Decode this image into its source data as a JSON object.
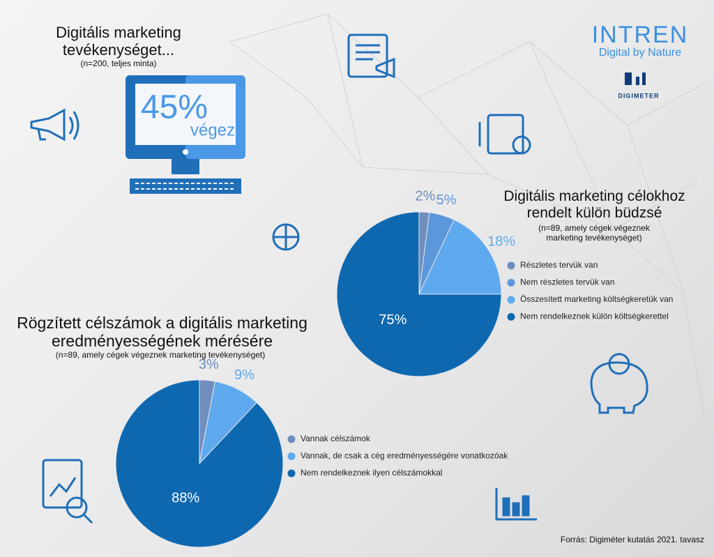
{
  "header": {
    "title": "Digitális marketing tevékenységet...",
    "subtitle": "(n=200, teljes minta)"
  },
  "monitor": {
    "percent": "45%",
    "caption": "végez"
  },
  "brand": {
    "name": "INTREN",
    "tagline": "Digital by Nature",
    "product": "DIGIMETER"
  },
  "source": "Forrás: Digiméter kutatás 2021. tavasz",
  "chart_data": [
    {
      "type": "pie",
      "title": "Digitális marketing célokhoz rendelt külön büdzsé",
      "subtitle": "(n=89, amely cégek végeznek marketing tevékenységet)",
      "categories": [
        "Részletes tervük van",
        "Nem részletes tervük van",
        "Összesített marketing költségkeretük van",
        "Nem rendelkeznek külön költségkerettel"
      ],
      "values": [
        2,
        5,
        18,
        75
      ],
      "value_labels": [
        "2%",
        "5%",
        "18%",
        "75%"
      ],
      "colors": [
        "#6f8dbd",
        "#5b97da",
        "#5fa9ef",
        "#0e68b0"
      ]
    },
    {
      "type": "pie",
      "title": "Rögzített célszámok a digitális marketing eredményességének mérésére",
      "subtitle": "(n=89, amely cégek végeznek marketing tevékenységet)",
      "categories": [
        "Vannak célszámok",
        "Vannak, de csak a cég eredményességére vonatkozóak",
        "Nem rendelkeznek ilyen célszámokkal"
      ],
      "values": [
        3,
        9,
        88
      ],
      "value_labels": [
        "3%",
        "9%",
        "88%"
      ],
      "colors": [
        "#6f8dbd",
        "#5fa9ef",
        "#0e68b0"
      ]
    }
  ]
}
